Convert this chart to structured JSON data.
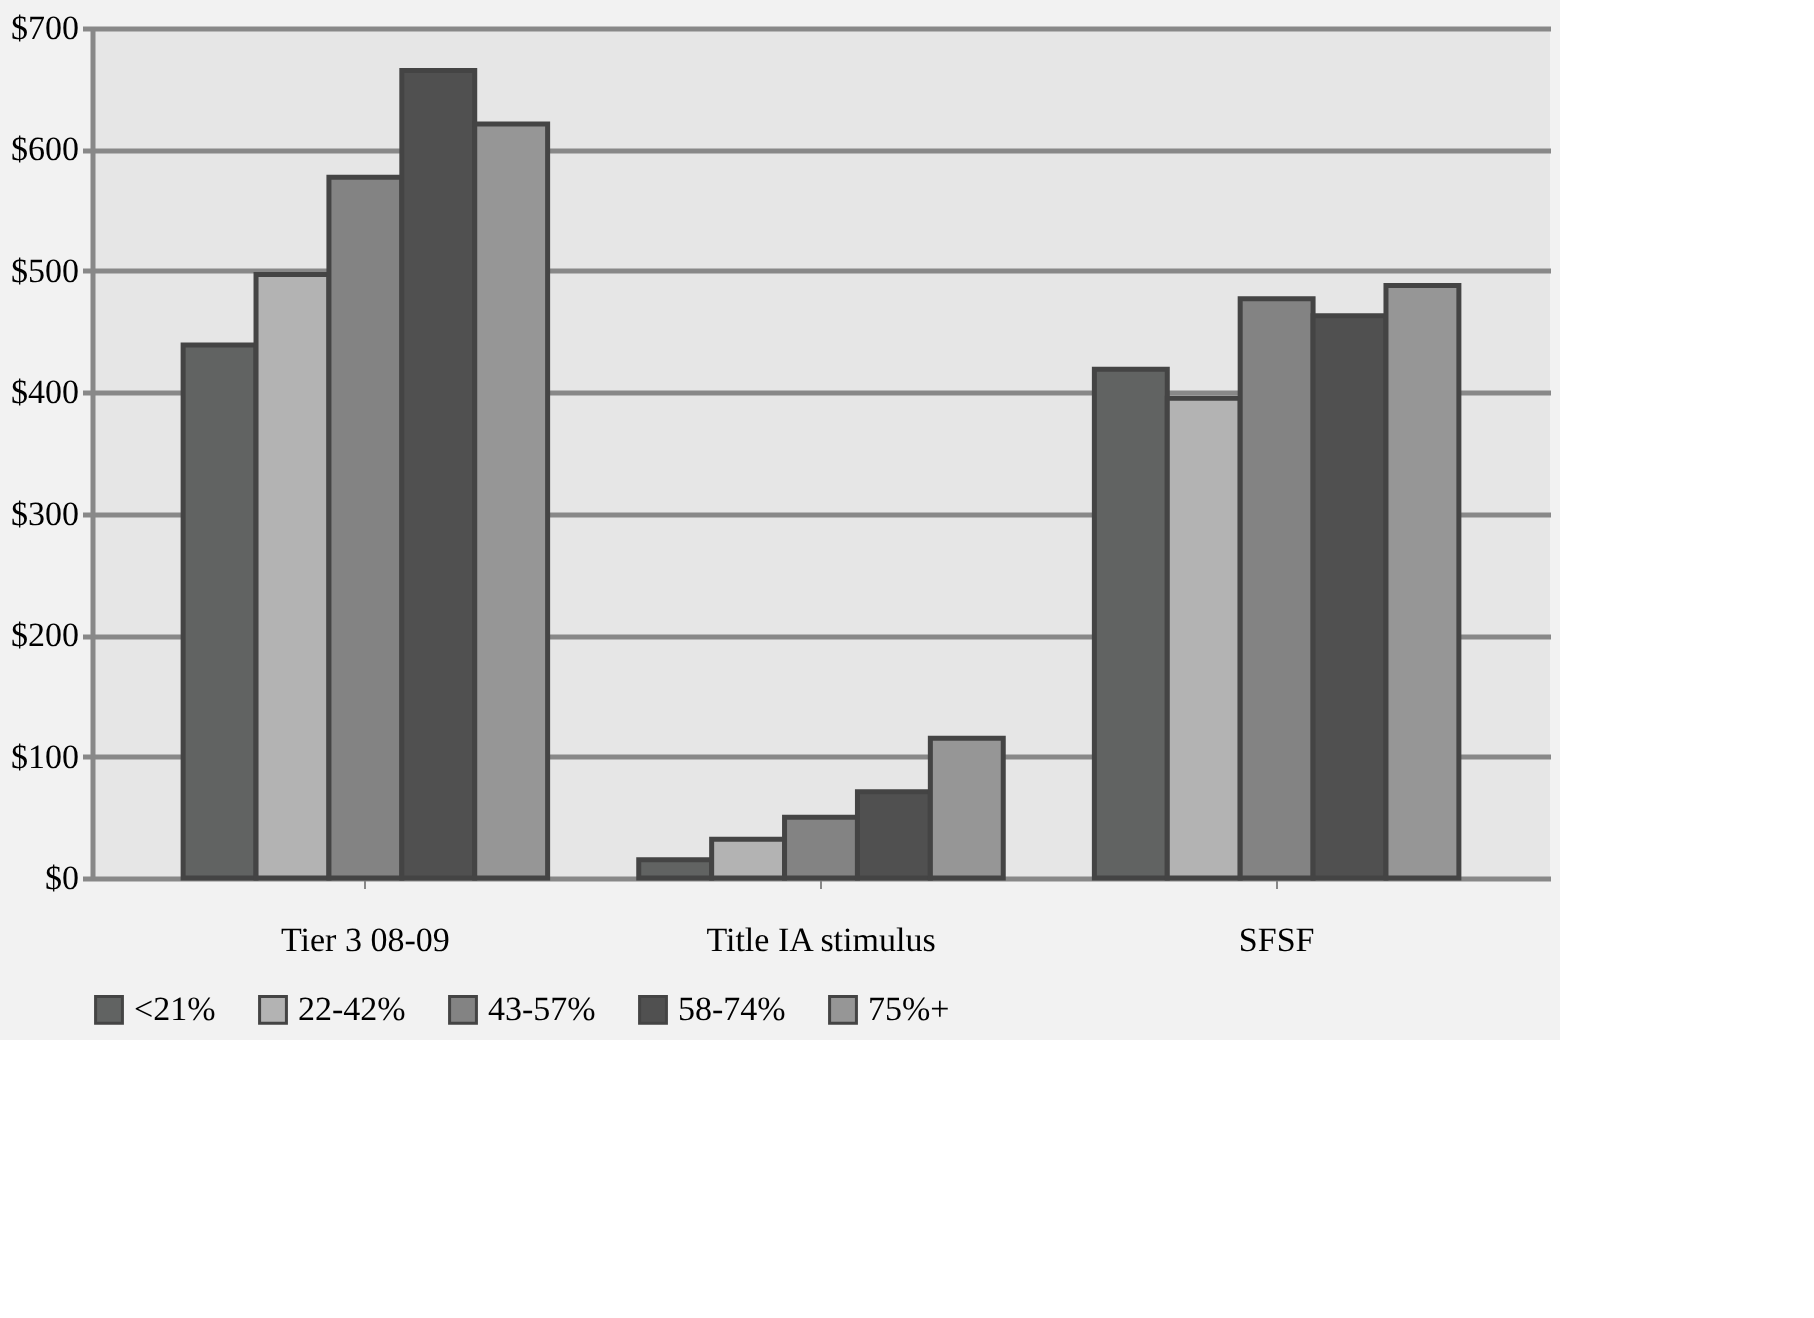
{
  "chart_data": {
    "type": "bar",
    "categories": [
      "Tier 3 08-09",
      "Title IA stimulus",
      "SFSF"
    ],
    "series": [
      {
        "name": "<21%",
        "color": "#616362",
        "values": [
          439,
          15,
          419
        ]
      },
      {
        "name": "22-42%",
        "color": "#b3b3b3",
        "values": [
          497,
          32,
          395
        ]
      },
      {
        "name": "43-57%",
        "color": "#838383",
        "values": [
          577,
          50,
          477
        ]
      },
      {
        "name": "58-74%",
        "color": "#505050",
        "values": [
          665,
          71,
          463
        ]
      },
      {
        "name": "75%+",
        "color": "#969696",
        "values": [
          621,
          115,
          488
        ]
      }
    ],
    "ylim": [
      0,
      700
    ],
    "yticks": [
      {
        "value": 0,
        "label": "$0"
      },
      {
        "value": 100,
        "label": "$100"
      },
      {
        "value": 200,
        "label": "$200"
      },
      {
        "value": 300,
        "label": "$300"
      },
      {
        "value": 400,
        "label": "$400"
      },
      {
        "value": 500,
        "label": "$500"
      },
      {
        "value": 600,
        "label": "$600"
      },
      {
        "value": 700,
        "label": "$700"
      }
    ],
    "grid": "y",
    "legend": "bottom"
  }
}
